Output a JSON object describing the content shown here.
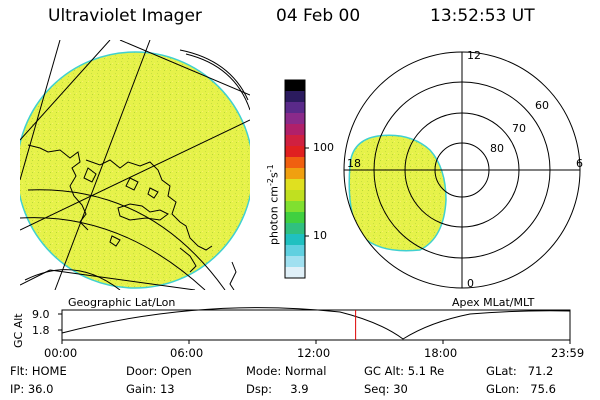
{
  "header": {
    "instrument": "Ultraviolet Imager",
    "date": "04 Feb 00",
    "time": "13:52:53 UT"
  },
  "colorbar": {
    "label_main": "photon cm",
    "label_sup1": "-2",
    "label_mid": "s",
    "label_sup2": "-1",
    "tick_100": "100",
    "tick_10": "10",
    "colors": [
      "#000000",
      "#2b1b5e",
      "#5a2a8a",
      "#8a2a8a",
      "#b0206a",
      "#d02040",
      "#e02020",
      "#f06010",
      "#f0a010",
      "#e0e020",
      "#c0e020",
      "#80e030",
      "#40d040",
      "#30c080",
      "#20c0c0",
      "#60d0e0",
      "#a0e0f0",
      "#e0f0f8"
    ]
  },
  "left_panel": {
    "caption": "Geographic Lat/Lon",
    "fill_color": "#e6f24a"
  },
  "right_panel": {
    "caption": "Apex MLat/MLT",
    "mlt_labels": {
      "top": "12",
      "bottom": "0",
      "left": "18",
      "right": "6"
    },
    "lat_labels": [
      "60",
      "70",
      "80"
    ],
    "fill_color": "#e6f24a"
  },
  "altitude_plot": {
    "axis_label": "GC Alt",
    "y_ticks": [
      "9.0",
      "1.8"
    ],
    "x_ticks": [
      "00:00",
      "06:00",
      "12:00",
      "18:00",
      "23:59"
    ],
    "current_time_fraction": 0.578,
    "marker_color": "#dd0000"
  },
  "status": {
    "flt": "Flt: HOME",
    "ip": "IP: 36.0",
    "door": "Door: Open",
    "gain": "Gain: 13",
    "mode": "Mode: Normal",
    "dsp": "Dsp:     3.9",
    "gc_alt": "GC Alt: 5.1 Re",
    "seq": "Seq: 30",
    "glat": "GLat:   71.2",
    "glon": "GLon:   75.6"
  }
}
